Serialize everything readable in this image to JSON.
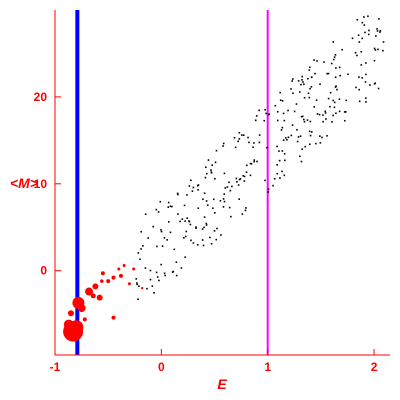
{
  "chart_data": {
    "type": "scatter",
    "xlabel": "E",
    "ylabel": "<M>",
    "xlim": [
      -1.0,
      2.15
    ],
    "ylim": [
      -9.7,
      30
    ],
    "xticks": [
      -1,
      0,
      1,
      2
    ],
    "yticks": [
      0,
      10,
      20
    ],
    "grid": false,
    "colors": {
      "axis": "#ff0000",
      "black_points": "#000000",
      "red_points": "#ff0000",
      "blue_line": "#0000ff",
      "magenta_line": "#ff00ff"
    },
    "vertical_lines": [
      {
        "name": "",
        "x": -0.79,
        "color": "#0000ff",
        "width": 4
      },
      {
        "name": "",
        "x": 1.0,
        "color": "#ff00ff",
        "width": 2
      }
    ],
    "red_series": {
      "points": [
        [
          -0.83,
          -7.0,
          10
        ],
        [
          -0.8,
          -6.5,
          7
        ],
        [
          -0.87,
          -6.2,
          5
        ],
        [
          -0.78,
          -3.7,
          6
        ],
        [
          -0.75,
          -4.3,
          4
        ],
        [
          -0.68,
          -2.4,
          4
        ],
        [
          -0.62,
          -1.8,
          3
        ],
        [
          -0.58,
          -3.1,
          3
        ],
        [
          -0.85,
          -4.9,
          3
        ],
        [
          -0.5,
          -1.2,
          2
        ],
        [
          -0.45,
          -0.8,
          2
        ],
        [
          -0.55,
          -0.3,
          2
        ],
        [
          -0.38,
          -0.6,
          2
        ],
        [
          -0.3,
          -1.5,
          1.5
        ],
        [
          -0.26,
          0.2,
          1.5
        ],
        [
          -0.35,
          0.6,
          1.5
        ],
        [
          -0.18,
          -2.0,
          1.2
        ],
        [
          -0.45,
          -5.4,
          2
        ],
        [
          -0.72,
          -5.6,
          2
        ],
        [
          -0.64,
          -2.9,
          2.5
        ],
        [
          -0.4,
          0.2,
          1.5
        ],
        [
          -0.56,
          -1.2,
          1.8
        ]
      ]
    }
  }
}
